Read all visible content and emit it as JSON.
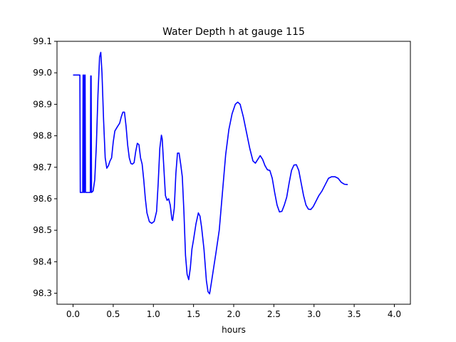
{
  "chart_data": {
    "type": "line",
    "title": "Water Depth h at gauge 115",
    "xlabel": "hours",
    "ylabel": "",
    "xlim": [
      -0.2,
      4.2
    ],
    "ylim": [
      98.265,
      99.1
    ],
    "xticks": [
      0.0,
      0.5,
      1.0,
      1.5,
      2.0,
      2.5,
      3.0,
      3.5,
      4.0
    ],
    "xtick_labels": [
      "0.0",
      "0.5",
      "1.0",
      "1.5",
      "2.0",
      "2.5",
      "3.0",
      "3.5",
      "4.0"
    ],
    "yticks": [
      98.3,
      98.4,
      98.5,
      98.6,
      98.7,
      98.8,
      98.9,
      99.0,
      99.1
    ],
    "ytick_labels": [
      "98.3",
      "98.4",
      "98.5",
      "98.6",
      "98.7",
      "98.8",
      "98.9",
      "99.0",
      "99.1"
    ],
    "grid": false,
    "series": [
      {
        "color": "#0000ff",
        "points": [
          [
            0.0,
            98.993
          ],
          [
            0.08,
            98.993
          ],
          [
            0.085,
            98.993
          ],
          [
            0.09,
            98.62
          ],
          [
            0.12,
            98.62
          ],
          [
            0.125,
            98.993
          ],
          [
            0.13,
            98.993
          ],
          [
            0.135,
            98.62
          ],
          [
            0.14,
            98.62
          ],
          [
            0.145,
            98.993
          ],
          [
            0.15,
            98.993
          ],
          [
            0.155,
            98.62
          ],
          [
            0.215,
            98.62
          ],
          [
            0.22,
            98.99
          ],
          [
            0.225,
            98.99
          ],
          [
            0.23,
            98.62
          ],
          [
            0.25,
            98.625
          ],
          [
            0.27,
            98.66
          ],
          [
            0.29,
            98.77
          ],
          [
            0.31,
            98.93
          ],
          [
            0.33,
            99.05
          ],
          [
            0.345,
            99.065
          ],
          [
            0.36,
            99.0
          ],
          [
            0.38,
            98.85
          ],
          [
            0.4,
            98.73
          ],
          [
            0.42,
            98.697
          ],
          [
            0.44,
            98.705
          ],
          [
            0.46,
            98.72
          ],
          [
            0.48,
            98.73
          ],
          [
            0.5,
            98.78
          ],
          [
            0.52,
            98.815
          ],
          [
            0.55,
            98.828
          ],
          [
            0.58,
            98.84
          ],
          [
            0.6,
            98.86
          ],
          [
            0.62,
            98.875
          ],
          [
            0.64,
            98.875
          ],
          [
            0.66,
            98.83
          ],
          [
            0.68,
            98.77
          ],
          [
            0.7,
            98.73
          ],
          [
            0.72,
            98.712
          ],
          [
            0.74,
            98.71
          ],
          [
            0.76,
            98.715
          ],
          [
            0.78,
            98.75
          ],
          [
            0.8,
            98.776
          ],
          [
            0.82,
            98.772
          ],
          [
            0.84,
            98.73
          ],
          [
            0.86,
            98.71
          ],
          [
            0.88,
            98.66
          ],
          [
            0.9,
            98.6
          ],
          [
            0.92,
            98.555
          ],
          [
            0.95,
            98.527
          ],
          [
            0.98,
            98.522
          ],
          [
            1.01,
            98.528
          ],
          [
            1.04,
            98.56
          ],
          [
            1.06,
            98.65
          ],
          [
            1.08,
            98.76
          ],
          [
            1.1,
            98.802
          ],
          [
            1.11,
            98.79
          ],
          [
            1.13,
            98.7
          ],
          [
            1.15,
            98.61
          ],
          [
            1.17,
            98.595
          ],
          [
            1.19,
            98.6
          ],
          [
            1.21,
            98.58
          ],
          [
            1.23,
            98.535
          ],
          [
            1.24,
            98.531
          ],
          [
            1.26,
            98.57
          ],
          [
            1.28,
            98.68
          ],
          [
            1.3,
            98.745
          ],
          [
            1.32,
            98.745
          ],
          [
            1.34,
            98.71
          ],
          [
            1.36,
            98.67
          ],
          [
            1.38,
            98.56
          ],
          [
            1.4,
            98.42
          ],
          [
            1.42,
            98.36
          ],
          [
            1.44,
            98.343
          ],
          [
            1.46,
            98.38
          ],
          [
            1.48,
            98.44
          ],
          [
            1.5,
            98.47
          ],
          [
            1.53,
            98.52
          ],
          [
            1.56,
            98.555
          ],
          [
            1.58,
            98.545
          ],
          [
            1.6,
            98.51
          ],
          [
            1.63,
            98.44
          ],
          [
            1.66,
            98.34
          ],
          [
            1.68,
            98.305
          ],
          [
            1.7,
            98.298
          ],
          [
            1.72,
            98.33
          ],
          [
            1.75,
            98.38
          ],
          [
            1.78,
            98.43
          ],
          [
            1.82,
            98.5
          ],
          [
            1.86,
            98.62
          ],
          [
            1.9,
            98.74
          ],
          [
            1.94,
            98.82
          ],
          [
            1.98,
            98.87
          ],
          [
            2.02,
            98.9
          ],
          [
            2.05,
            98.907
          ],
          [
            2.08,
            98.9
          ],
          [
            2.12,
            98.86
          ],
          [
            2.16,
            98.81
          ],
          [
            2.2,
            98.76
          ],
          [
            2.24,
            98.72
          ],
          [
            2.27,
            98.713
          ],
          [
            2.3,
            98.725
          ],
          [
            2.33,
            98.737
          ],
          [
            2.36,
            98.725
          ],
          [
            2.39,
            98.705
          ],
          [
            2.42,
            98.692
          ],
          [
            2.45,
            98.69
          ],
          [
            2.48,
            98.665
          ],
          [
            2.51,
            98.62
          ],
          [
            2.54,
            98.58
          ],
          [
            2.57,
            98.558
          ],
          [
            2.6,
            98.56
          ],
          [
            2.63,
            98.58
          ],
          [
            2.66,
            98.605
          ],
          [
            2.69,
            98.65
          ],
          [
            2.72,
            98.69
          ],
          [
            2.75,
            98.707
          ],
          [
            2.78,
            98.708
          ],
          [
            2.81,
            98.69
          ],
          [
            2.84,
            98.65
          ],
          [
            2.87,
            98.61
          ],
          [
            2.9,
            98.58
          ],
          [
            2.93,
            98.567
          ],
          [
            2.96,
            98.566
          ],
          [
            2.99,
            98.575
          ],
          [
            3.02,
            98.59
          ],
          [
            3.06,
            98.61
          ],
          [
            3.1,
            98.625
          ],
          [
            3.14,
            98.645
          ],
          [
            3.18,
            98.665
          ],
          [
            3.22,
            98.67
          ],
          [
            3.26,
            98.67
          ],
          [
            3.3,
            98.665
          ],
          [
            3.34,
            98.652
          ],
          [
            3.38,
            98.646
          ],
          [
            3.42,
            98.645
          ]
        ]
      }
    ]
  }
}
